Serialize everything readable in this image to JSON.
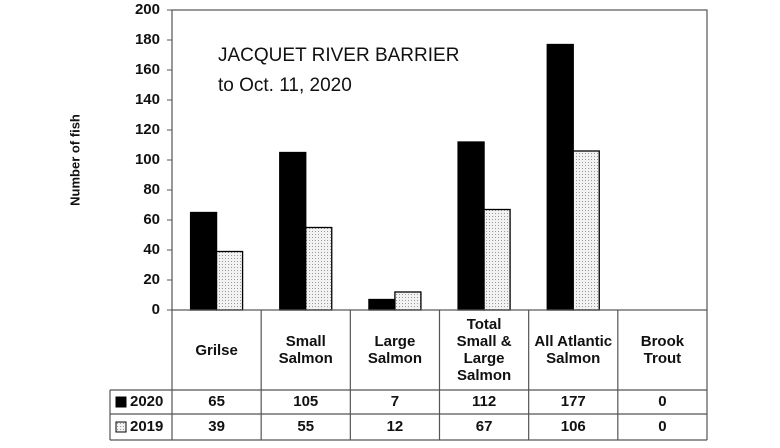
{
  "chart_data": {
    "type": "bar",
    "title": "JACQUET RIVER BARRIER",
    "subtitle": "to Oct. 11, 2020",
    "y_label": "Number of fish",
    "categories": [
      "Grilse",
      "Small Salmon",
      "Large Salmon",
      "Total Small & Large Salmon",
      "All Atlantic Salmon",
      "Brook Trout"
    ],
    "series": [
      {
        "name": "2020",
        "color": "#000000",
        "values": [
          65,
          105,
          7,
          112,
          177,
          0
        ]
      },
      {
        "name": "2019",
        "color": "#ececec",
        "values": [
          39,
          55,
          12,
          67,
          106,
          0
        ]
      }
    ],
    "ylim": [
      0,
      200
    ],
    "yticks": [
      0,
      20,
      40,
      60,
      80,
      100,
      120,
      140,
      160,
      180,
      200
    ]
  }
}
